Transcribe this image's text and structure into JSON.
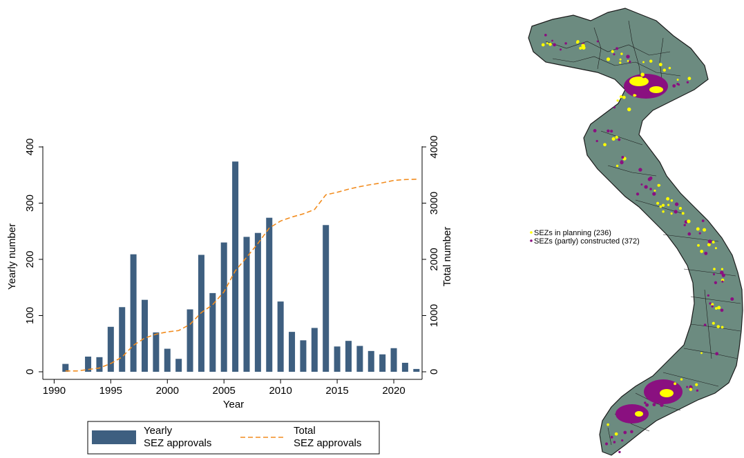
{
  "chart_data": [
    {
      "type": "bar",
      "xlabel": "Year",
      "ylabel": "Yearly number",
      "y2label": "Total number",
      "xticks": [
        1990,
        1995,
        2000,
        2005,
        2010,
        2015,
        2020
      ],
      "yticks": [
        0,
        100,
        200,
        300,
        400
      ],
      "y2ticks": [
        0,
        1000,
        2000,
        3000,
        4000
      ],
      "xlim": [
        1989,
        2022.5
      ],
      "ylim": [
        0,
        400
      ],
      "y2lim": [
        0,
        4000
      ],
      "years": [
        1991,
        1992,
        1993,
        1994,
        1995,
        1996,
        1997,
        1998,
        1999,
        2000,
        2001,
        2002,
        2003,
        2004,
        2005,
        2006,
        2007,
        2008,
        2009,
        2010,
        2011,
        2012,
        2013,
        2014,
        2015,
        2016,
        2017,
        2018,
        2019,
        2020,
        2021,
        2022
      ],
      "series": [
        {
          "name": "Yearly SEZ approvals",
          "type": "bar",
          "axis": "left",
          "color": "#3e5f80",
          "values": [
            14,
            0,
            27,
            26,
            80,
            115,
            209,
            128,
            70,
            41,
            23,
            111,
            208,
            140,
            230,
            374,
            240,
            247,
            274,
            125,
            71,
            56,
            78,
            261,
            45,
            55,
            46,
            37,
            31,
            42,
            16,
            5
          ]
        },
        {
          "name": "Total SEZ approvals",
          "type": "line",
          "axis": "right",
          "color": "#f28c1e",
          "style": "dashed",
          "values": [
            14,
            14,
            41,
            67,
            147,
            262,
            471,
            599,
            669,
            710,
            733,
            844,
            1052,
            1192,
            1422,
            1796,
            2036,
            2283,
            2557,
            2682,
            2753,
            2809,
            2887,
            3148,
            3193,
            3248,
            3294,
            3331,
            3362,
            3404,
            3420,
            3425
          ]
        }
      ],
      "legend": {
        "position": "bottom",
        "items": [
          {
            "line1": "Yearly",
            "line2": "SEZ approvals"
          },
          {
            "line1": "Total",
            "line2": "SEZ approvals"
          }
        ]
      }
    },
    {
      "type": "map",
      "legend": {
        "position": "left",
        "items": [
          {
            "label": "SEZs in planning (236)",
            "color": "#ffff00"
          },
          {
            "label": "SEZs (partly) constructed (372)",
            "color": "#8a1080"
          }
        ]
      },
      "fill_color": "#6c8b80",
      "border_color": "#1a1a1a"
    }
  ]
}
